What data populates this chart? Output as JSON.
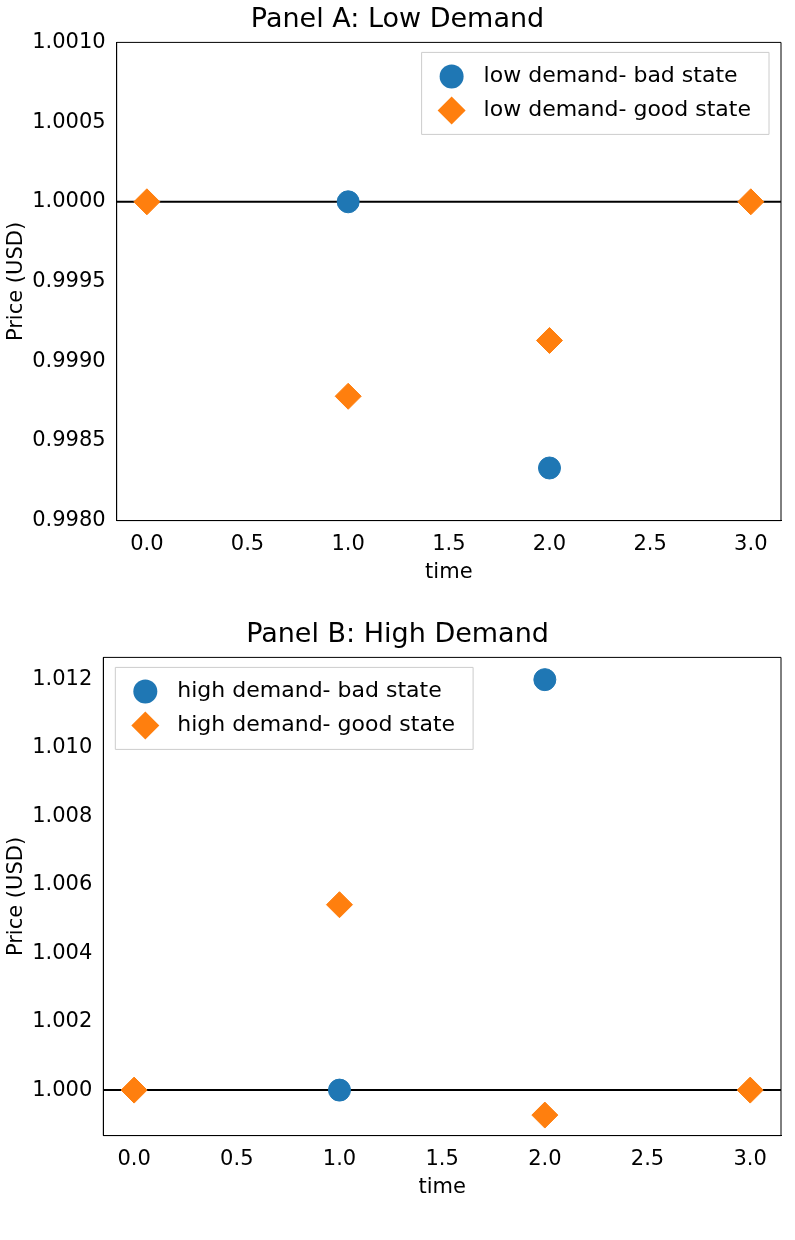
{
  "chart_data": [
    {
      "type": "scatter",
      "title": "Panel A: Low Demand",
      "xlabel": "time",
      "ylabel": "Price (USD)",
      "x": [
        0,
        1,
        2,
        3
      ],
      "series": [
        {
          "name": "low demand- bad state",
          "color": "#1f77b4",
          "marker": "circle",
          "values": [
            null,
            1.0,
            0.99833,
            null
          ]
        },
        {
          "name": "low demand- good state",
          "color": "#ff7f0e",
          "marker": "diamond",
          "values": [
            1.0,
            0.99878,
            0.99913,
            1.0
          ]
        }
      ],
      "xlim": [
        -0.15,
        3.15
      ],
      "xticks": [
        {
          "value": 0,
          "label": "0.0"
        },
        {
          "value": 0.5,
          "label": "0.5"
        },
        {
          "value": 1,
          "label": "1.0"
        },
        {
          "value": 1.5,
          "label": "1.5"
        },
        {
          "value": 2,
          "label": "2.0"
        },
        {
          "value": 2.5,
          "label": "2.5"
        },
        {
          "value": 3,
          "label": "3.0"
        }
      ],
      "ylim": [
        0.998,
        1.001
      ],
      "yticks": [
        {
          "value": 0.998,
          "label": "0.9980"
        },
        {
          "value": 0.9985,
          "label": "0.9985"
        },
        {
          "value": 0.999,
          "label": "0.9990"
        },
        {
          "value": 0.9995,
          "label": "0.9995"
        },
        {
          "value": 1.0,
          "label": "1.0000"
        },
        {
          "value": 1.0005,
          "label": "1.0005"
        },
        {
          "value": 1.001,
          "label": "1.0010"
        }
      ],
      "ref_lines": [
        {
          "axis": "y",
          "value": 1.0,
          "color": "#000000"
        }
      ],
      "grid": false,
      "legend": "top right"
    },
    {
      "type": "scatter",
      "title": "Panel B: High Demand",
      "xlabel": "time",
      "ylabel": "Price (USD)",
      "x": [
        0,
        1,
        2,
        3
      ],
      "series": [
        {
          "name": "high demand- bad state",
          "color": "#1f77b4",
          "marker": "circle",
          "values": [
            null,
            1.0,
            1.012,
            null
          ]
        },
        {
          "name": "high demand- good state",
          "color": "#ff7f0e",
          "marker": "diamond",
          "values": [
            1.0,
            1.00542,
            0.99927,
            1.0
          ]
        }
      ],
      "xlim": [
        -0.15,
        3.15
      ],
      "xticks": [
        {
          "value": 0,
          "label": "0.0"
        },
        {
          "value": 0.5,
          "label": "0.5"
        },
        {
          "value": 1,
          "label": "1.0"
        },
        {
          "value": 1.5,
          "label": "1.5"
        },
        {
          "value": 2,
          "label": "2.0"
        },
        {
          "value": 2.5,
          "label": "2.5"
        },
        {
          "value": 3,
          "label": "3.0"
        }
      ],
      "ylim": [
        0.99867,
        1.01265
      ],
      "yticks": [
        {
          "value": 1.0,
          "label": "1.000"
        },
        {
          "value": 1.002,
          "label": "1.002"
        },
        {
          "value": 1.004,
          "label": "1.004"
        },
        {
          "value": 1.006,
          "label": "1.006"
        },
        {
          "value": 1.008,
          "label": "1.008"
        },
        {
          "value": 1.01,
          "label": "1.010"
        },
        {
          "value": 1.012,
          "label": "1.012"
        }
      ],
      "ref_lines": [
        {
          "axis": "y",
          "value": 1.0,
          "color": "#000000"
        }
      ],
      "grid": false,
      "legend": "top left"
    }
  ]
}
